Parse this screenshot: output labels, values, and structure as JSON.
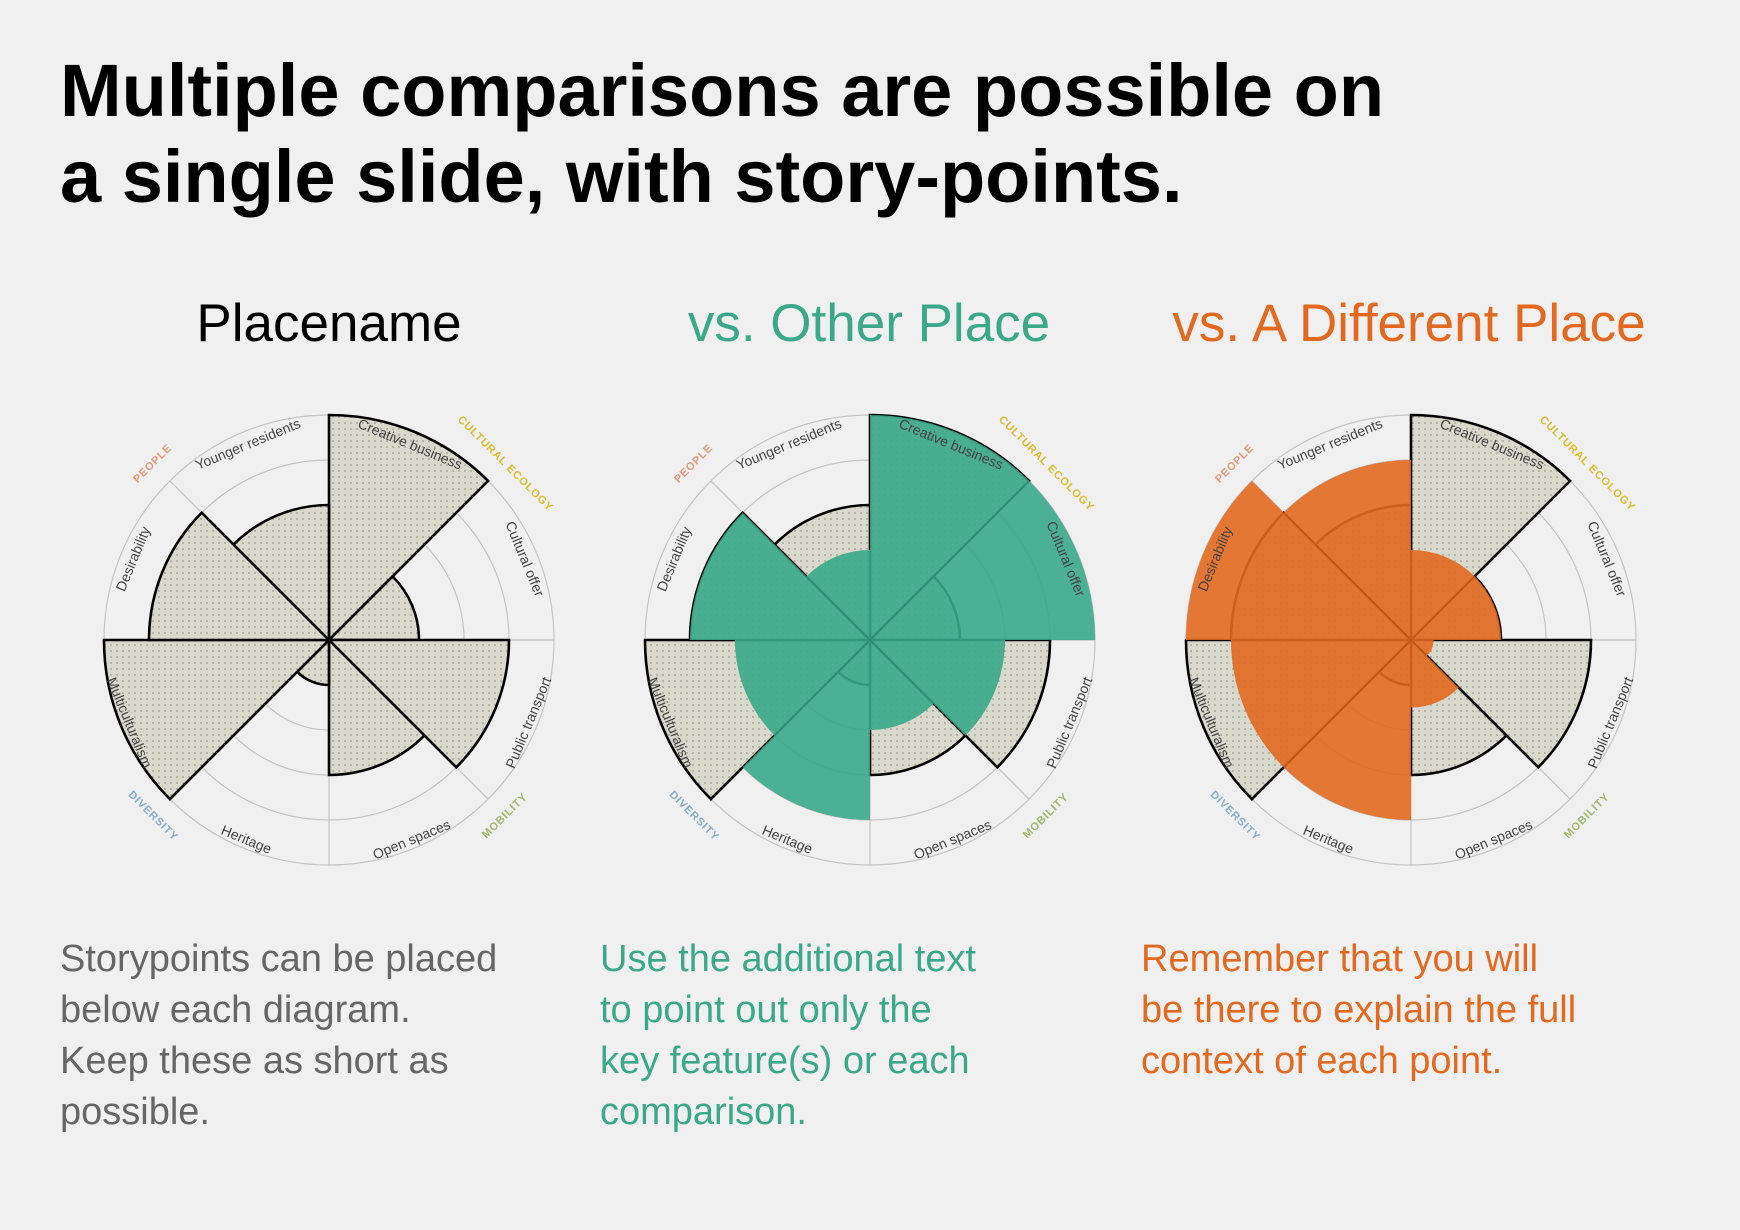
{
  "headline": {
    "line1": "Multiple comparisons are possible on",
    "line2": "a single slide, with story-points."
  },
  "colors": {
    "base_fill": "#d8d8cc",
    "base_outline": "#000000",
    "grid": "#c4c4c4",
    "other_place": "#3aa889",
    "different_place": "#e2691f",
    "body_text": "#666666",
    "group_people": "#e09a7c",
    "group_cultural_ecology": "#d8be2c",
    "group_mobility": "#a2b56a",
    "group_diversity": "#88acc8"
  },
  "panels": [
    {
      "title": "Placename",
      "title_color": "#000000",
      "storypoint": {
        "lines": [
          "Storypoints can be placed",
          "below each diagram.",
          "Keep these as short as",
          "possible."
        ],
        "color": "#666666"
      }
    },
    {
      "title": "vs. Other Place",
      "title_color": "#3aa889",
      "storypoint": {
        "lines": [
          "Use the additional text",
          "to point out only the",
          "key feature(s) or each",
          "comparison."
        ],
        "color": "#3aa889"
      }
    },
    {
      "title": "vs. A Different Place",
      "title_color": "#e2691f",
      "storypoint": {
        "lines": [
          "Remember that you will",
          "be there to explain the full",
          "context of each point."
        ],
        "color": "#e2691f"
      }
    }
  ],
  "chart_data": [
    {
      "type": "polar-area",
      "ring_count": 5,
      "rmax": 5,
      "categories": [
        "Creative business",
        "Cultural offer",
        "Public transport",
        "Open spaces",
        "Heritage",
        "Multiculturalism",
        "Desirability",
        "Younger residents"
      ],
      "groups": [
        {
          "name": "CULTURAL ECOLOGY",
          "color": "#d8be2c"
        },
        {
          "name": "MOBILITY",
          "color": "#a2b56a"
        },
        {
          "name": "DIVERSITY",
          "color": "#88acc8"
        },
        {
          "name": "PEOPLE",
          "color": "#e09a7c"
        }
      ],
      "series": [
        {
          "values": [
            5,
            2,
            4,
            3,
            1,
            5,
            4,
            3
          ]
        }
      ]
    },
    {
      "type": "polar-area",
      "ring_count": 5,
      "rmax": 5,
      "categories": [
        "Creative business",
        "Cultural offer",
        "Public transport",
        "Open spaces",
        "Heritage",
        "Multiculturalism",
        "Desirability",
        "Younger residents"
      ],
      "groups": [
        {
          "name": "CULTURAL ECOLOGY",
          "color": "#d8be2c"
        },
        {
          "name": "MOBILITY",
          "color": "#a2b56a"
        },
        {
          "name": "DIVERSITY",
          "color": "#88acc8"
        },
        {
          "name": "PEOPLE",
          "color": "#e09a7c"
        }
      ],
      "series": [
        {
          "values": [
            5,
            2,
            4,
            3,
            1,
            5,
            4,
            3
          ]
        },
        {
          "name": "Other Place",
          "values": [
            5,
            5,
            3,
            2,
            4,
            3,
            4,
            2
          ]
        }
      ]
    },
    {
      "type": "polar-area",
      "ring_count": 5,
      "rmax": 5,
      "categories": [
        "Creative business",
        "Cultural offer",
        "Public transport",
        "Open spaces",
        "Heritage",
        "Multiculturalism",
        "Desirability",
        "Younger residents"
      ],
      "groups": [
        {
          "name": "CULTURAL ECOLOGY",
          "color": "#d8be2c"
        },
        {
          "name": "MOBILITY",
          "color": "#a2b56a"
        },
        {
          "name": "DIVERSITY",
          "color": "#88acc8"
        },
        {
          "name": "PEOPLE",
          "color": "#e09a7c"
        }
      ],
      "series": [
        {
          "values": [
            5,
            2,
            4,
            3,
            1,
            5,
            4,
            3
          ]
        },
        {
          "name": "A Different Place",
          "values": [
            2,
            2,
            0.5,
            1.5,
            4,
            4,
            5,
            4
          ]
        }
      ]
    }
  ]
}
